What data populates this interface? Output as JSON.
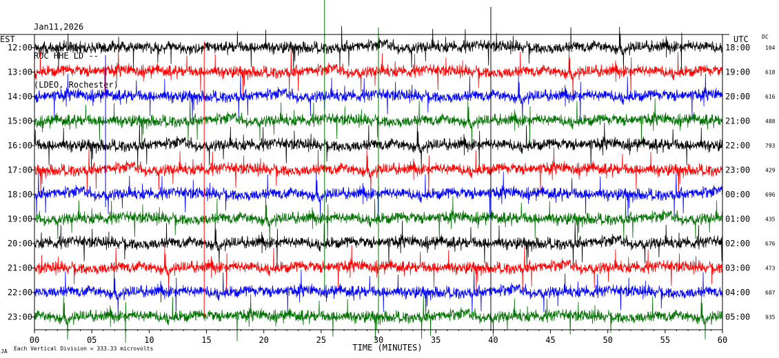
{
  "header": {
    "date": "Jan11,2026",
    "station": "ROC HHE LD --",
    "network": "(LDEO, Rochester)"
  },
  "axis": {
    "left_tz": "EST",
    "right_tz": "UTC",
    "dc_label": "DC",
    "xlabel": "TIME (MINUTES)",
    "scale_note": "Each Vertical Division =  333.33 microvolts",
    "corner_mark": "JA"
  },
  "chart_data": {
    "type": "line",
    "description_free": true,
    "xlim": [
      0,
      60
    ],
    "x_ticks": [
      "00",
      "05",
      "10",
      "15",
      "20",
      "25",
      "30",
      "35",
      "40",
      "45",
      "50",
      "55",
      "60"
    ],
    "rows": [
      {
        "local": "12:00",
        "utc": "18:00",
        "dc": "104",
        "color": "#000000"
      },
      {
        "local": "13:00",
        "utc": "19:00",
        "dc": "618",
        "color": "#ff0000"
      },
      {
        "local": "14:00",
        "utc": "20:00",
        "dc": "616",
        "color": "#0000ff"
      },
      {
        "local": "15:00",
        "utc": "21:00",
        "dc": "488",
        "color": "#007000"
      },
      {
        "local": "16:00",
        "utc": "22:00",
        "dc": "793",
        "color": "#000000"
      },
      {
        "local": "17:00",
        "utc": "23:00",
        "dc": "429",
        "color": "#ff0000"
      },
      {
        "local": "18:00",
        "utc": "00:00",
        "dc": "696",
        "color": "#0000ff"
      },
      {
        "local": "19:00",
        "utc": "01:00",
        "dc": "435",
        "color": "#007000"
      },
      {
        "local": "20:00",
        "utc": "02:00",
        "dc": "676",
        "color": "#000000"
      },
      {
        "local": "21:00",
        "utc": "03:00",
        "dc": "473",
        "color": "#ff0000"
      },
      {
        "local": "22:00",
        "utc": "04:00",
        "dc": "687",
        "color": "#0000ff"
      },
      {
        "local": "23:00",
        "utc": "05:00",
        "dc": "935",
        "color": "#007000"
      }
    ]
  }
}
